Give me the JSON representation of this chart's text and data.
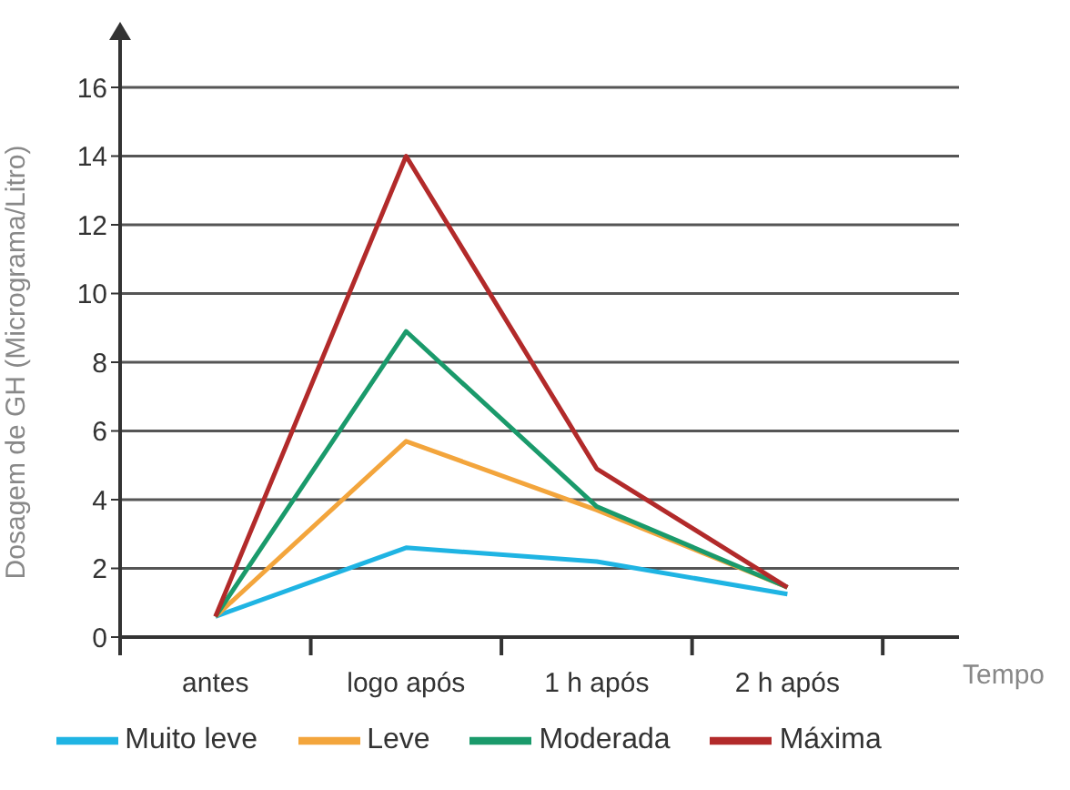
{
  "chart_data": {
    "type": "line",
    "xlabel": "Tempo",
    "ylabel": "Dosagem de GH (Micrograma/Litro)",
    "categories": [
      "antes",
      "logo após",
      "1 h após",
      "2 h após"
    ],
    "series": [
      {
        "name": "Muito leve",
        "color": "#1fb4e3",
        "values": [
          0.6,
          2.6,
          2.2,
          1.25
        ]
      },
      {
        "name": "Leve",
        "color": "#f3a53c",
        "values": [
          0.6,
          5.7,
          3.7,
          1.45
        ]
      },
      {
        "name": "Moderada",
        "color": "#1a9a6b",
        "values": [
          0.6,
          8.9,
          3.8,
          1.45
        ]
      },
      {
        "name": "Máxima",
        "color": "#b22a2a",
        "values": [
          0.6,
          14,
          4.9,
          1.45
        ]
      }
    ],
    "ylim": [
      0,
      16
    ],
    "yticks": [
      0,
      2,
      4,
      6,
      8,
      10,
      12,
      14,
      16
    ],
    "grid": "y",
    "legend": "bottom",
    "marker": "none",
    "line_style": "solid"
  }
}
